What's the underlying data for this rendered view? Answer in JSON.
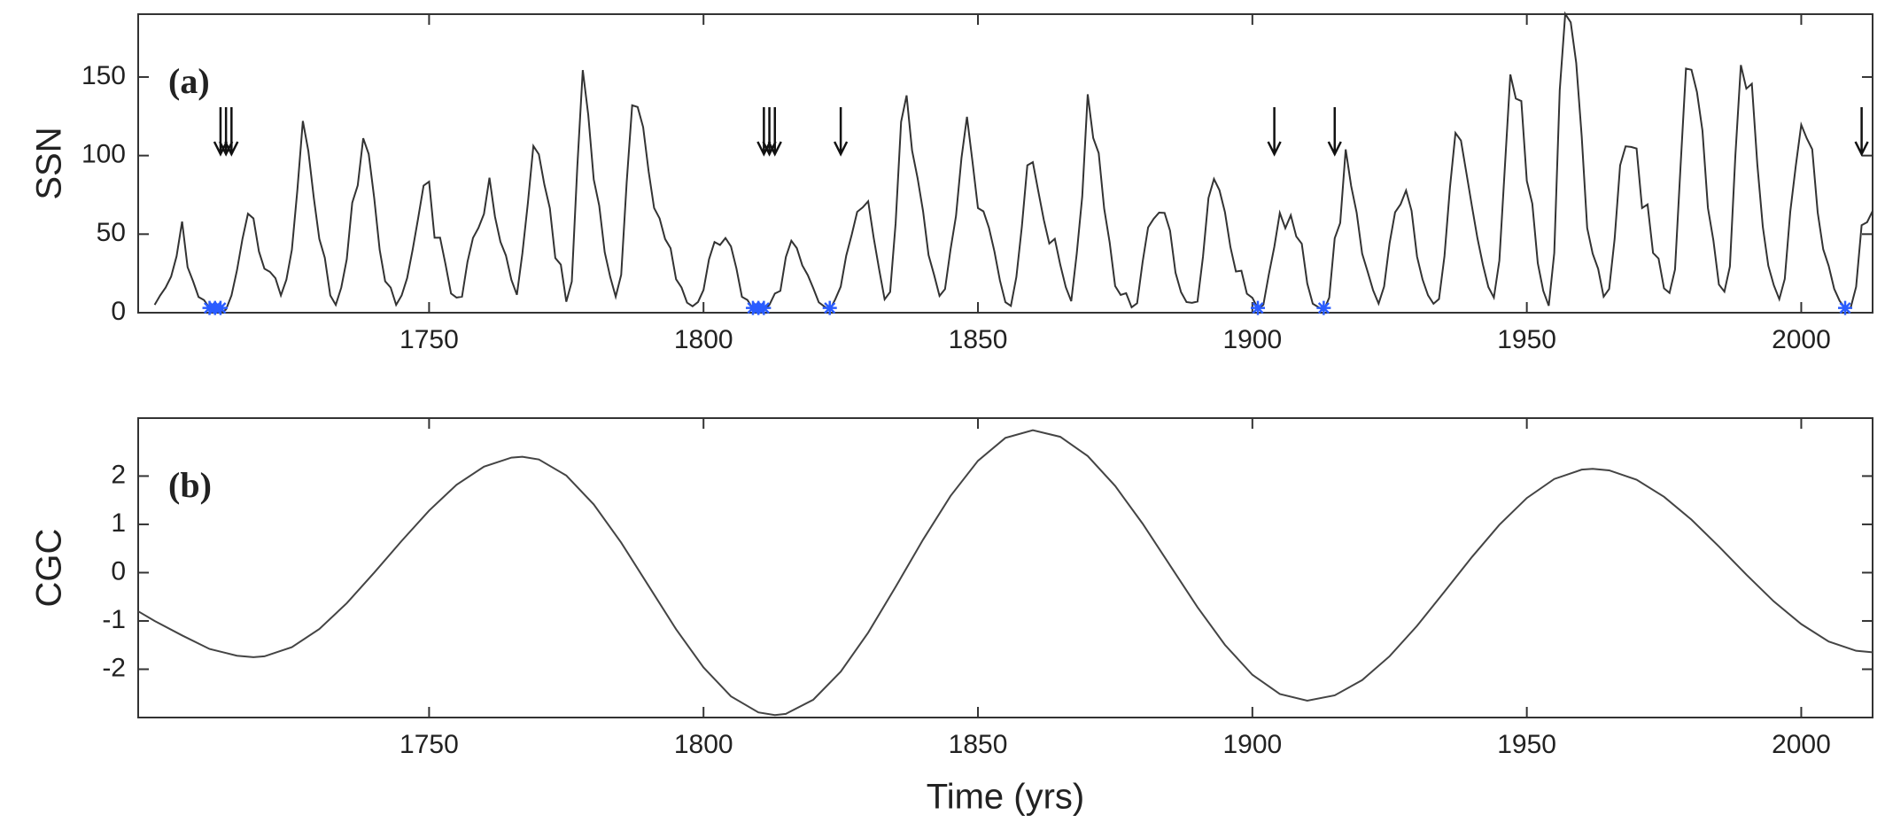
{
  "chart_data": [
    {
      "type": "line",
      "label": "(a)",
      "ylabel": "SSN",
      "color": "#333333",
      "xlim": [
        1697,
        2013
      ],
      "ylim": [
        0,
        190
      ],
      "xticks": [
        1750,
        1800,
        1850,
        1900,
        1950,
        2000
      ],
      "yticks": [
        0,
        50,
        100,
        150
      ],
      "x": [
        1700,
        1701,
        1702,
        1703,
        1704,
        1705,
        1706,
        1707,
        1708,
        1709,
        1710,
        1711,
        1712,
        1713,
        1714,
        1715,
        1716,
        1717,
        1718,
        1719,
        1720,
        1721,
        1722,
        1723,
        1724,
        1725,
        1726,
        1727,
        1728,
        1729,
        1730,
        1731,
        1732,
        1733,
        1734,
        1735,
        1736,
        1737,
        1738,
        1739,
        1740,
        1741,
        1742,
        1743,
        1744,
        1745,
        1746,
        1747,
        1748,
        1749,
        1750,
        1751,
        1752,
        1753,
        1754,
        1755,
        1756,
        1757,
        1758,
        1759,
        1760,
        1761,
        1762,
        1763,
        1764,
        1765,
        1766,
        1767,
        1768,
        1769,
        1770,
        1771,
        1772,
        1773,
        1774,
        1775,
        1776,
        1777,
        1778,
        1779,
        1780,
        1781,
        1782,
        1783,
        1784,
        1785,
        1786,
        1787,
        1788,
        1789,
        1790,
        1791,
        1792,
        1793,
        1794,
        1795,
        1796,
        1797,
        1798,
        1799,
        1800,
        1801,
        1802,
        1803,
        1804,
        1805,
        1806,
        1807,
        1808,
        1809,
        1810,
        1811,
        1812,
        1813,
        1814,
        1815,
        1816,
        1817,
        1818,
        1819,
        1820,
        1821,
        1822,
        1823,
        1824,
        1825,
        1826,
        1827,
        1828,
        1829,
        1830,
        1831,
        1832,
        1833,
        1834,
        1835,
        1836,
        1837,
        1838,
        1839,
        1840,
        1841,
        1842,
        1843,
        1844,
        1845,
        1846,
        1847,
        1848,
        1849,
        1850,
        1851,
        1852,
        1853,
        1854,
        1855,
        1856,
        1857,
        1858,
        1859,
        1860,
        1861,
        1862,
        1863,
        1864,
        1865,
        1866,
        1867,
        1868,
        1869,
        1870,
        1871,
        1872,
        1873,
        1874,
        1875,
        1876,
        1877,
        1878,
        1879,
        1880,
        1881,
        1882,
        1883,
        1884,
        1885,
        1886,
        1887,
        1888,
        1889,
        1890,
        1891,
        1892,
        1893,
        1894,
        1895,
        1896,
        1897,
        1898,
        1899,
        1900,
        1901,
        1902,
        1903,
        1904,
        1905,
        1906,
        1907,
        1908,
        1909,
        1910,
        1911,
        1912,
        1913,
        1914,
        1915,
        1916,
        1917,
        1918,
        1919,
        1920,
        1921,
        1922,
        1923,
        1924,
        1925,
        1926,
        1927,
        1928,
        1929,
        1930,
        1931,
        1932,
        1933,
        1934,
        1935,
        1936,
        1937,
        1938,
        1939,
        1940,
        1941,
        1942,
        1943,
        1944,
        1945,
        1946,
        1947,
        1948,
        1949,
        1950,
        1951,
        1952,
        1953,
        1954,
        1955,
        1956,
        1957,
        1958,
        1959,
        1960,
        1961,
        1962,
        1963,
        1964,
        1965,
        1966,
        1967,
        1968,
        1969,
        1970,
        1971,
        1972,
        1973,
        1974,
        1975,
        1976,
        1977,
        1978,
        1979,
        1980,
        1981,
        1982,
        1983,
        1984,
        1985,
        1986,
        1987,
        1988,
        1989,
        1990,
        1991,
        1992,
        1993,
        1994,
        1995,
        1996,
        1997,
        1998,
        1999,
        2000,
        2001,
        2002,
        2003,
        2004,
        2005,
        2006,
        2007,
        2008,
        2009,
        2010,
        2011,
        2012,
        2013
      ],
      "values": [
        5,
        11,
        16,
        23,
        36,
        58,
        29,
        20,
        10,
        8,
        3,
        0,
        0,
        2,
        11,
        27,
        47,
        63,
        60,
        39,
        28,
        26,
        22,
        11,
        21,
        40,
        78,
        122,
        103,
        73,
        47,
        35,
        11,
        5,
        16,
        34,
        70,
        81,
        111,
        101,
        73,
        40,
        20,
        16,
        5,
        11,
        22,
        40,
        60,
        80.9,
        83.4,
        47.7,
        47.8,
        30.7,
        12.2,
        9.6,
        10.2,
        32.4,
        47.6,
        54,
        62.9,
        85.9,
        61.2,
        45.1,
        36.4,
        20.9,
        11.4,
        37.8,
        69.8,
        106.1,
        100.8,
        81.6,
        66.5,
        34.8,
        30.6,
        7,
        19.8,
        92.5,
        154.4,
        125.9,
        84.8,
        68.1,
        38.5,
        22.8,
        10.2,
        24.1,
        82.9,
        132,
        130.9,
        118.1,
        89.9,
        66.6,
        60,
        46.9,
        41,
        21.3,
        16,
        6.4,
        4.1,
        6.8,
        14.5,
        34,
        45,
        43.1,
        47.5,
        42.2,
        28.1,
        10.1,
        8.1,
        2.5,
        0,
        1.4,
        5,
        12.2,
        13.9,
        35.4,
        45.8,
        41.1,
        30.1,
        23.9,
        15.6,
        6.6,
        4,
        1.8,
        8.5,
        16.6,
        36.3,
        49.6,
        64.2,
        67,
        70.9,
        47.8,
        27.5,
        8.5,
        13.2,
        56.9,
        121.5,
        138.3,
        103.2,
        85.7,
        64.6,
        36.7,
        24.2,
        10.7,
        15,
        40.1,
        61.5,
        98.5,
        124.7,
        96.3,
        66.6,
        64.5,
        54.1,
        39,
        20.6,
        6.7,
        4.3,
        22.7,
        54.8,
        93.8,
        95.8,
        77.2,
        59.1,
        44,
        47,
        30.5,
        16.3,
        7.3,
        37.6,
        74,
        139,
        111.2,
        101.6,
        66.2,
        44.7,
        17,
        11.3,
        12.4,
        3.4,
        6,
        32.3,
        54.3,
        59.7,
        63.7,
        63.5,
        52.2,
        25.4,
        13.1,
        6.8,
        6.3,
        7.1,
        35.6,
        73,
        85.1,
        78,
        64,
        41.8,
        26.2,
        26.7,
        12.1,
        9.5,
        2.7,
        5,
        24.4,
        42,
        63.5,
        53.8,
        62,
        48.5,
        43.9,
        18.6,
        5.7,
        3.6,
        1.4,
        9.6,
        47.4,
        57.1,
        103.9,
        80.6,
        63.6,
        37.6,
        26.1,
        14.2,
        5.8,
        16.7,
        44.3,
        63.9,
        69,
        77.8,
        64.9,
        35.7,
        21.2,
        11.1,
        5.7,
        8.7,
        36.1,
        79.7,
        114.4,
        109.6,
        88.8,
        67.8,
        47.5,
        30.6,
        16.3,
        9.6,
        33.2,
        92.6,
        151.6,
        136.3,
        134.7,
        83.9,
        69.4,
        31.5,
        13.9,
        4.4,
        38,
        141.7,
        190.2,
        184.8,
        159,
        112.3,
        53.9,
        37.6,
        27.9,
        10.2,
        15.1,
        47,
        93.8,
        105.9,
        105.5,
        104.5,
        66.6,
        68.9,
        38,
        34.5,
        15.5,
        12.6,
        27.5,
        92.5,
        155.4,
        154.6,
        140.4,
        115.9,
        66.6,
        45.9,
        17.9,
        13.4,
        29.4,
        100.2,
        157.6,
        142.6,
        145.7,
        94.3,
        54.6,
        29.9,
        17.5,
        8.6,
        21.5,
        64.3,
        93.3,
        119.6,
        111,
        104,
        63.7,
        40.4,
        29.8,
        15.2,
        7.5,
        2.9,
        3.1,
        16.5,
        55.7,
        57.6,
        64.7
      ],
      "minima": {
        "color": "#2a5cff",
        "x": [
          1710,
          1711,
          1712,
          1809,
          1810,
          1811,
          1823,
          1901,
          1913,
          2008
        ],
        "values": [
          3,
          3,
          3,
          3,
          3,
          3,
          3,
          3,
          3,
          3
        ]
      },
      "arrows": {
        "color": "#111111",
        "x": [
          1712,
          1713,
          1714,
          1811,
          1812,
          1813,
          1825,
          1904,
          1915,
          2011
        ]
      }
    },
    {
      "type": "line",
      "label": "(b)",
      "ylabel": "CGC",
      "xlabel": "Time (yrs)",
      "color": "#444444",
      "xlim": [
        1697,
        2013
      ],
      "ylim": [
        -3,
        3.2
      ],
      "xticks": [
        1750,
        1800,
        1850,
        1900,
        1950,
        2000
      ],
      "yticks": [
        -2,
        -1,
        0,
        1,
        2
      ],
      "x": [
        1697,
        1700,
        1705,
        1710,
        1715,
        1718,
        1720,
        1725,
        1730,
        1735,
        1740,
        1745,
        1750,
        1755,
        1760,
        1765,
        1767,
        1770,
        1775,
        1780,
        1785,
        1790,
        1795,
        1800,
        1805,
        1810,
        1813,
        1815,
        1820,
        1825,
        1830,
        1835,
        1840,
        1845,
        1850,
        1855,
        1860,
        1865,
        1870,
        1875,
        1880,
        1885,
        1890,
        1895,
        1900,
        1905,
        1910,
        1915,
        1920,
        1925,
        1930,
        1935,
        1940,
        1945,
        1950,
        1955,
        1960,
        1962,
        1965,
        1970,
        1975,
        1980,
        1985,
        1990,
        1995,
        2000,
        2005,
        2010,
        2013
      ],
      "values": [
        -0.8,
        -1.0,
        -1.3,
        -1.58,
        -1.72,
        -1.75,
        -1.733,
        -1.544,
        -1.167,
        -0.633,
        0.0,
        0.657,
        1.284,
        1.819,
        2.194,
        2.382,
        2.4,
        2.344,
        2.011,
        1.413,
        0.622,
        -0.275,
        -1.172,
        -1.963,
        -2.561,
        -2.894,
        -2.95,
        -2.924,
        -2.631,
        -2.05,
        -1.242,
        -0.295,
        0.684,
        1.587,
        2.316,
        2.791,
        2.95,
        2.813,
        2.415,
        1.796,
        1.015,
        0.15,
        -0.715,
        -1.496,
        -2.115,
        -2.513,
        -2.65,
        -2.541,
        -2.225,
        -1.731,
        -1.102,
        -0.394,
        0.324,
        0.991,
        1.545,
        1.939,
        2.133,
        2.15,
        2.118,
        1.924,
        1.571,
        1.097,
        0.541,
        -0.041,
        -0.596,
        -1.065,
        -1.426,
        -1.618,
        -1.65
      ]
    }
  ]
}
